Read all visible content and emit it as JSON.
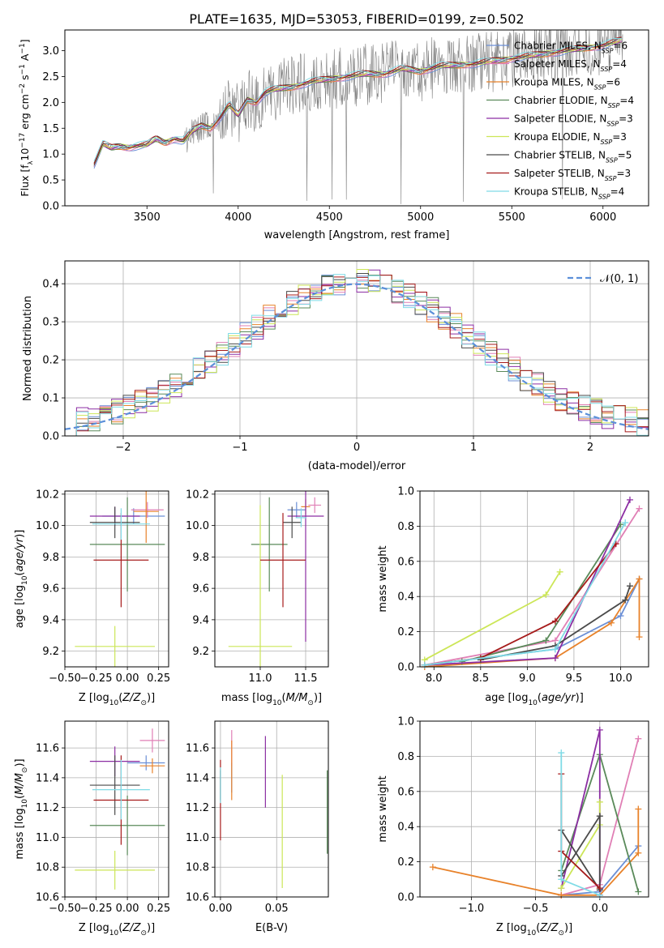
{
  "figure_title": "PLATE=1635, MJD=53053, FIBERID=0199, z=0.502",
  "colors": {
    "Chabrier MILES": "#6b8fd6",
    "Salpeter MILES": "#e07fb5",
    "Kroupa MILES": "#e8822a",
    "Chabrier ELODIE": "#5a8a5a",
    "Salpeter ELODIE": "#8c2ea3",
    "Kroupa ELODIE": "#cce657",
    "Chabrier STELIB": "#4a4a4a",
    "Salpeter STELIB": "#a61b1b",
    "Kroupa STELIB": "#7fdbe6",
    "grey_data": "#808080",
    "gauss": "#5b8fd9"
  },
  "chart_data": [
    {
      "id": "spectrum",
      "type": "line",
      "xlabel": "wavelength [Angstrom, rest frame]",
      "ylabel": "Flux [f$_\\lambda$10$^{-17}$ erg cm$^{-2}$ s$^{-1}$ A$^{-1}$]",
      "ylabel_main": "Flux [f",
      "ylabel_sub": "λ",
      "ylabel_rest": "10",
      "ylabel_sup1": "−17",
      "ylabel_mid": " erg cm",
      "ylabel_sup2": "−2",
      "ylabel_mid2": " s",
      "ylabel_sup3": "−1",
      "ylabel_mid3": " A",
      "ylabel_sup4": "−1",
      "ylabel_end": "]",
      "xlim": [
        3050,
        6250
      ],
      "ylim": [
        0,
        3.4
      ],
      "xticks": [
        3500,
        4000,
        4500,
        5000,
        5500,
        6000
      ],
      "yticks": [
        0.0,
        0.5,
        1.0,
        1.5,
        2.0,
        2.5,
        3.0
      ],
      "legend": "top-right",
      "legend_entries": [
        {
          "prefix": "Chabrier MILES, N",
          "sub": "SSP",
          "suffix": "=6"
        },
        {
          "prefix": "Salpeter MILES, N",
          "sub": "SSP",
          "suffix": "=4"
        },
        {
          "prefix": "Kroupa MILES, N",
          "sub": "SSP",
          "suffix": "=6"
        },
        {
          "prefix": "Chabrier ELODIE, N",
          "sub": "SSP",
          "suffix": "=4"
        },
        {
          "prefix": "Salpeter ELODIE, N",
          "sub": "SSP",
          "suffix": "=3"
        },
        {
          "prefix": "Kroupa ELODIE, N",
          "sub": "SSP",
          "suffix": "=3"
        },
        {
          "prefix": "Chabrier STELIB, N",
          "sub": "SSP",
          "suffix": "=5"
        },
        {
          "prefix": "Salpeter STELIB, N",
          "sub": "SSP",
          "suffix": "=3"
        },
        {
          "prefix": "Kroupa STELIB, N",
          "sub": "SSP",
          "suffix": "=4"
        }
      ],
      "model_continuum": [
        [
          3210,
          0.8
        ],
        [
          3260,
          1.2
        ],
        [
          3300,
          1.12
        ],
        [
          3350,
          1.15
        ],
        [
          3400,
          1.13
        ],
        [
          3450,
          1.16
        ],
        [
          3500,
          1.18
        ],
        [
          3550,
          1.3
        ],
        [
          3600,
          1.22
        ],
        [
          3650,
          1.3
        ],
        [
          3700,
          1.25
        ],
        [
          3750,
          1.45
        ],
        [
          3800,
          1.55
        ],
        [
          3850,
          1.5
        ],
        [
          3900,
          1.7
        ],
        [
          3950,
          1.95
        ],
        [
          4000,
          1.75
        ],
        [
          4050,
          2.05
        ],
        [
          4100,
          2.0
        ],
        [
          4150,
          2.2
        ],
        [
          4200,
          2.25
        ],
        [
          4300,
          2.3
        ],
        [
          4400,
          2.4
        ],
        [
          4500,
          2.45
        ],
        [
          4600,
          2.5
        ],
        [
          4700,
          2.55
        ],
        [
          4800,
          2.55
        ],
        [
          4900,
          2.65
        ],
        [
          5000,
          2.6
        ],
        [
          5100,
          2.7
        ],
        [
          5200,
          2.72
        ],
        [
          5300,
          2.75
        ],
        [
          5400,
          2.8
        ],
        [
          5500,
          2.85
        ],
        [
          5600,
          2.9
        ],
        [
          5700,
          2.95
        ],
        [
          5800,
          3.0
        ],
        [
          5900,
          3.05
        ],
        [
          6000,
          3.1
        ],
        [
          6100,
          3.2
        ]
      ],
      "data_range": [
        3210,
        6110
      ]
    },
    {
      "id": "residuals",
      "type": "line",
      "xlabel": "(data-model)/error",
      "ylabel": "Normed distribution",
      "xlim": [
        -2.5,
        2.5
      ],
      "ylim": [
        0,
        0.46
      ],
      "xticks": [
        -2,
        -1,
        0,
        1,
        2
      ],
      "yticks": [
        0.0,
        0.1,
        0.2,
        0.3,
        0.4
      ],
      "grid": true,
      "legend": "top-right",
      "legend_label": "𝒩(0, 1)",
      "bin_width": 0.1
    },
    {
      "id": "age_vs_Z",
      "type": "scatter",
      "xlabel": "Z [log$_{10}$(Z/Z$_\\odot$)]",
      "ylabel": "age [log$_{10}$(age/yr)]",
      "xlim": [
        -0.5,
        0.33
      ],
      "ylim": [
        9.1,
        10.22
      ],
      "xticks": [
        -0.5,
        -0.25,
        0.0,
        0.25
      ],
      "yticks": [
        9.2,
        9.4,
        9.6,
        9.8,
        10.0,
        10.2
      ],
      "grid": true,
      "points": [
        {
          "model": "Chabrier MILES",
          "x": 0.05,
          "y": 10.06,
          "xerr": 0.25,
          "yerr": 0.05
        },
        {
          "model": "Salpeter MILES",
          "x": 0.16,
          "y": 10.1,
          "xerr": 0.13,
          "yerr": 0.05
        },
        {
          "model": "Kroupa MILES",
          "x": 0.15,
          "y": 10.09,
          "xerr": 0.1,
          "yerr": 0.2
        },
        {
          "model": "Chabrier ELODIE",
          "x": 0.0,
          "y": 9.88,
          "xerr": 0.3,
          "yerr": 0.3
        },
        {
          "model": "Salpeter ELODIE",
          "x": -0.1,
          "y": 10.06,
          "xerr": 0.2,
          "yerr": 0.06
        },
        {
          "model": "Kroupa ELODIE",
          "x": -0.1,
          "y": 9.23,
          "xerr": 0.32,
          "yerr": 0.13
        },
        {
          "model": "Chabrier STELIB",
          "x": -0.1,
          "y": 10.02,
          "xerr": 0.2,
          "yerr": 0.1
        },
        {
          "model": "Salpeter STELIB",
          "x": -0.05,
          "y": 9.78,
          "xerr": 0.22,
          "yerr": 0.3
        },
        {
          "model": "Kroupa STELIB",
          "x": -0.05,
          "y": 10.01,
          "xerr": 0.23,
          "yerr": 0.1
        }
      ]
    },
    {
      "id": "age_vs_mass",
      "type": "scatter",
      "xlabel": "mass [log$_{10}$(M/M$_\\odot$)]",
      "xlim": [
        10.5,
        11.75
      ],
      "ylim": [
        9.1,
        10.22
      ],
      "xticks": [
        11.0,
        11.5
      ],
      "yticks": [
        9.2,
        9.4,
        9.6,
        9.8,
        10.0,
        10.2
      ],
      "grid": true,
      "points": [
        {
          "model": "Chabrier MILES",
          "x": 11.4,
          "y": 10.1,
          "xerr": 0.1,
          "yerr": 0.05
        },
        {
          "model": "Salpeter MILES",
          "x": 11.6,
          "y": 10.13,
          "xerr": 0.07,
          "yerr": 0.05
        },
        {
          "model": "Kroupa MILES",
          "x": 11.5,
          "y": 10.12,
          "xerr": 0.05,
          "yerr": 0.05
        },
        {
          "model": "Chabrier ELODIE",
          "x": 11.1,
          "y": 9.88,
          "xerr": 0.2,
          "yerr": 0.3
        },
        {
          "model": "Salpeter ELODIE",
          "x": 11.5,
          "y": 10.06,
          "xerr": 0.2,
          "yerr": 0.8
        },
        {
          "model": "Kroupa ELODIE",
          "x": 11.0,
          "y": 9.23,
          "xerr": 0.35,
          "yerr": 0.9
        },
        {
          "model": "Chabrier STELIB",
          "x": 11.35,
          "y": 10.02,
          "xerr": 0.1,
          "yerr": 0.1
        },
        {
          "model": "Salpeter STELIB",
          "x": 11.25,
          "y": 9.78,
          "xerr": 0.25,
          "yerr": 0.3
        },
        {
          "model": "Kroupa STELIB",
          "x": 11.45,
          "y": 10.05,
          "xerr": 0.06,
          "yerr": 0.06
        }
      ]
    },
    {
      "id": "mass_weight_vs_age",
      "type": "line",
      "xlabel": "age [log$_{10}$(age/yr)]",
      "ylabel": "mass weight",
      "xlim": [
        7.85,
        10.3
      ],
      "ylim": [
        0,
        1.0
      ],
      "xticks": [
        8.0,
        8.5,
        9.0,
        9.5,
        10.0
      ],
      "yticks": [
        0.0,
        0.2,
        0.4,
        0.6,
        0.8,
        1.0
      ],
      "grid": true,
      "series": [
        {
          "model": "Chabrier MILES",
          "x": [
            7.9,
            9.3,
            10.0,
            10.2
          ],
          "y": [
            0.01,
            0.1,
            0.29,
            0.5
          ]
        },
        {
          "model": "Salpeter MILES",
          "x": [
            7.9,
            9.3,
            10.2
          ],
          "y": [
            0.01,
            0.15,
            0.9
          ]
        },
        {
          "model": "Kroupa MILES",
          "x": [
            7.9,
            9.3,
            9.9,
            10.2,
            10.2
          ],
          "y": [
            0.0,
            0.05,
            0.25,
            0.5,
            0.17
          ]
        },
        {
          "model": "Chabrier ELODIE",
          "x": [
            8.3,
            9.2,
            10.0
          ],
          "y": [
            0.03,
            0.15,
            0.81
          ]
        },
        {
          "model": "Salpeter ELODIE",
          "x": [
            7.9,
            9.3,
            10.1
          ],
          "y": [
            0.01,
            0.05,
            0.95
          ]
        },
        {
          "model": "Kroupa ELODIE",
          "x": [
            7.9,
            9.2,
            9.35
          ],
          "y": [
            0.04,
            0.41,
            0.54
          ]
        },
        {
          "model": "Chabrier STELIB",
          "x": [
            8.5,
            9.3,
            10.05,
            10.1
          ],
          "y": [
            0.04,
            0.12,
            0.38,
            0.46
          ]
        },
        {
          "model": "Salpeter STELIB",
          "x": [
            7.9,
            8.5,
            9.3,
            9.95
          ],
          "y": [
            0.01,
            0.05,
            0.26,
            0.7
          ]
        },
        {
          "model": "Kroupa STELIB",
          "x": [
            7.9,
            9.3,
            10.05
          ],
          "y": [
            0.01,
            0.1,
            0.82
          ]
        }
      ]
    },
    {
      "id": "mass_vs_Z",
      "type": "scatter",
      "xlabel": "Z [log$_{10}$(Z/Z$_\\odot$)]",
      "ylabel": "mass [log$_{10}$(M/M$_\\odot$)]",
      "xlim": [
        -0.5,
        0.33
      ],
      "ylim": [
        10.6,
        11.78
      ],
      "xticks": [
        -0.5,
        -0.25,
        0.0,
        0.25
      ],
      "yticks": [
        10.6,
        10.8,
        11.0,
        11.2,
        11.4,
        11.6
      ],
      "grid": true,
      "points": [
        {
          "model": "Chabrier MILES",
          "x": 0.15,
          "y": 11.5,
          "xerr": 0.15,
          "yerr": 0.05
        },
        {
          "model": "Salpeter MILES",
          "x": 0.2,
          "y": 11.65,
          "xerr": 0.1,
          "yerr": 0.08
        },
        {
          "model": "Kroupa MILES",
          "x": 0.2,
          "y": 11.48,
          "xerr": 0.1,
          "yerr": 0.05
        },
        {
          "model": "Chabrier ELODIE",
          "x": 0.0,
          "y": 11.08,
          "xerr": 0.3,
          "yerr": 0.2
        },
        {
          "model": "Salpeter ELODIE",
          "x": -0.1,
          "y": 11.51,
          "xerr": 0.2,
          "yerr": 0.1
        },
        {
          "model": "Kroupa ELODIE",
          "x": -0.1,
          "y": 10.78,
          "xerr": 0.32,
          "yerr": 0.13
        },
        {
          "model": "Chabrier STELIB",
          "x": -0.1,
          "y": 11.35,
          "xerr": 0.2,
          "yerr": 0.2
        },
        {
          "model": "Salpeter STELIB",
          "x": -0.05,
          "y": 11.25,
          "xerr": 0.22,
          "yerr": 0.3
        },
        {
          "model": "Kroupa STELIB",
          "x": -0.05,
          "y": 11.32,
          "xerr": 0.23,
          "yerr": 0.2
        }
      ]
    },
    {
      "id": "mass_vs_ebv",
      "type": "scatter",
      "xlabel": "E(B-V)",
      "xlim": [
        -0.005,
        0.096
      ],
      "ylim": [
        10.6,
        11.78
      ],
      "xticks": [
        0.0,
        0.05
      ],
      "yticks": [
        10.6,
        10.8,
        11.0,
        11.2,
        11.4,
        11.6
      ],
      "grid": true,
      "points": [
        {
          "model": "Chabrier MILES",
          "x": 0.01,
          "y": 11.4,
          "yerr": 0.1
        },
        {
          "model": "Salpeter MILES",
          "x": 0.01,
          "y": 11.6,
          "yerr": 0.12
        },
        {
          "model": "Kroupa MILES",
          "x": 0.01,
          "y": 11.45,
          "yerr": 0.2
        },
        {
          "model": "Chabrier ELODIE",
          "x": 0.095,
          "y": 11.17,
          "yerr": 0.28
        },
        {
          "model": "Salpeter ELODIE",
          "x": 0.04,
          "y": 11.44,
          "yerr": 0.24
        },
        {
          "model": "Kroupa ELODIE",
          "x": 0.055,
          "y": 11.04,
          "yerr": 0.38
        },
        {
          "model": "Chabrier STELIB",
          "x": 0.0,
          "y": 11.35,
          "yerr": 0.1
        },
        {
          "model": "Salpeter STELIB",
          "x": 0.0,
          "y": 11.25,
          "yerr": 0.27
        },
        {
          "model": "Kroupa STELIB",
          "x": 0.0,
          "y": 11.35,
          "yerr": 0.12
        }
      ]
    },
    {
      "id": "mass_weight_vs_Z",
      "type": "line",
      "xlabel": "Z [log$_{10}$(Z/Z$_\\odot$)]",
      "ylabel": "mass weight",
      "xlim": [
        -1.4,
        0.38
      ],
      "ylim": [
        0,
        1.0
      ],
      "xticks": [
        -1.0,
        -0.5,
        0.0
      ],
      "yticks": [
        0.0,
        0.2,
        0.4,
        0.6,
        0.8,
        1.0
      ],
      "grid": true,
      "series": [
        {
          "model": "Chabrier MILES",
          "x": [
            -0.3,
            0.0,
            0.3
          ],
          "y": [
            0.01,
            0.03,
            0.29
          ]
        },
        {
          "model": "Salpeter MILES",
          "x": [
            -0.3,
            0.0,
            0.3
          ],
          "y": [
            0.01,
            0.07,
            0.9
          ]
        },
        {
          "model": "Kroupa MILES",
          "x": [
            -1.3,
            -0.3,
            0.0,
            0.3,
            0.3
          ],
          "y": [
            0.17,
            0.01,
            0.01,
            0.25,
            0.5
          ]
        },
        {
          "model": "Chabrier ELODIE",
          "x": [
            -0.3,
            0.0,
            0.3
          ],
          "y": [
            0.15,
            0.81,
            0.03
          ]
        },
        {
          "model": "Salpeter ELODIE",
          "x": [
            -0.3,
            0.0,
            0.0
          ],
          "y": [
            0.05,
            0.95,
            0.01
          ]
        },
        {
          "model": "Kroupa ELODIE",
          "x": [
            -0.3,
            0.0,
            0.0
          ],
          "y": [
            0.05,
            0.41,
            0.54
          ]
        },
        {
          "model": "Chabrier STELIB",
          "x": [
            -0.3,
            0.0,
            0.0,
            -0.3
          ],
          "y": [
            0.38,
            0.04,
            0.46,
            0.12
          ]
        },
        {
          "model": "Salpeter STELIB",
          "x": [
            -0.3,
            -0.3,
            0.0
          ],
          "y": [
            0.7,
            0.26,
            0.05
          ]
        },
        {
          "model": "Kroupa STELIB",
          "x": [
            -0.3,
            -0.3,
            0.0
          ],
          "y": [
            0.82,
            0.1,
            0.01
          ]
        }
      ]
    }
  ]
}
